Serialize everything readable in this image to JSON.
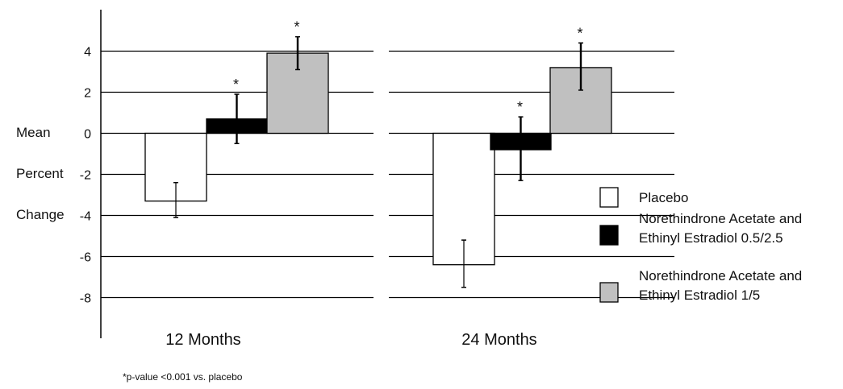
{
  "chart_data": {
    "type": "bar",
    "ylabel_lines": [
      "Mean",
      "Percent",
      "Change"
    ],
    "y_ticks": [
      4,
      2,
      0,
      -2,
      -4,
      -6,
      -8
    ],
    "y_tick_labels": [
      "4",
      "2",
      "0",
      "-2",
      "-4",
      "-6",
      "-8"
    ],
    "ylim": [
      -10,
      6
    ],
    "grid": true,
    "legend_position": "right",
    "groups": [
      "12 Months",
      "24 Months"
    ],
    "series": [
      {
        "name": "Placebo",
        "color": "#ffffff",
        "values": [
          -3.3,
          -6.4
        ],
        "error_low": [
          -4.1,
          -7.5
        ],
        "error_high": [
          -2.4,
          -5.2
        ],
        "significant": [
          false,
          false
        ]
      },
      {
        "name_lines": [
          "Norethindrone Acetate and",
          "Ethinyl Estradiol 0.5/2.5"
        ],
        "color": "#000000",
        "values": [
          0.7,
          -0.8
        ],
        "error_low": [
          -0.5,
          -2.3
        ],
        "error_high": [
          1.9,
          0.8
        ],
        "significant": [
          true,
          true
        ]
      },
      {
        "name_lines": [
          "Norethindrone Acetate and",
          "Ethinyl Estradiol 1/5"
        ],
        "color": "#c0c0c0",
        "values": [
          3.9,
          3.2
        ],
        "error_low": [
          3.1,
          2.1
        ],
        "error_high": [
          4.7,
          4.4
        ],
        "significant": [
          true,
          true
        ]
      }
    ],
    "significance_marker": "*",
    "footnote": "*p-value <0.001 vs. placebo"
  }
}
